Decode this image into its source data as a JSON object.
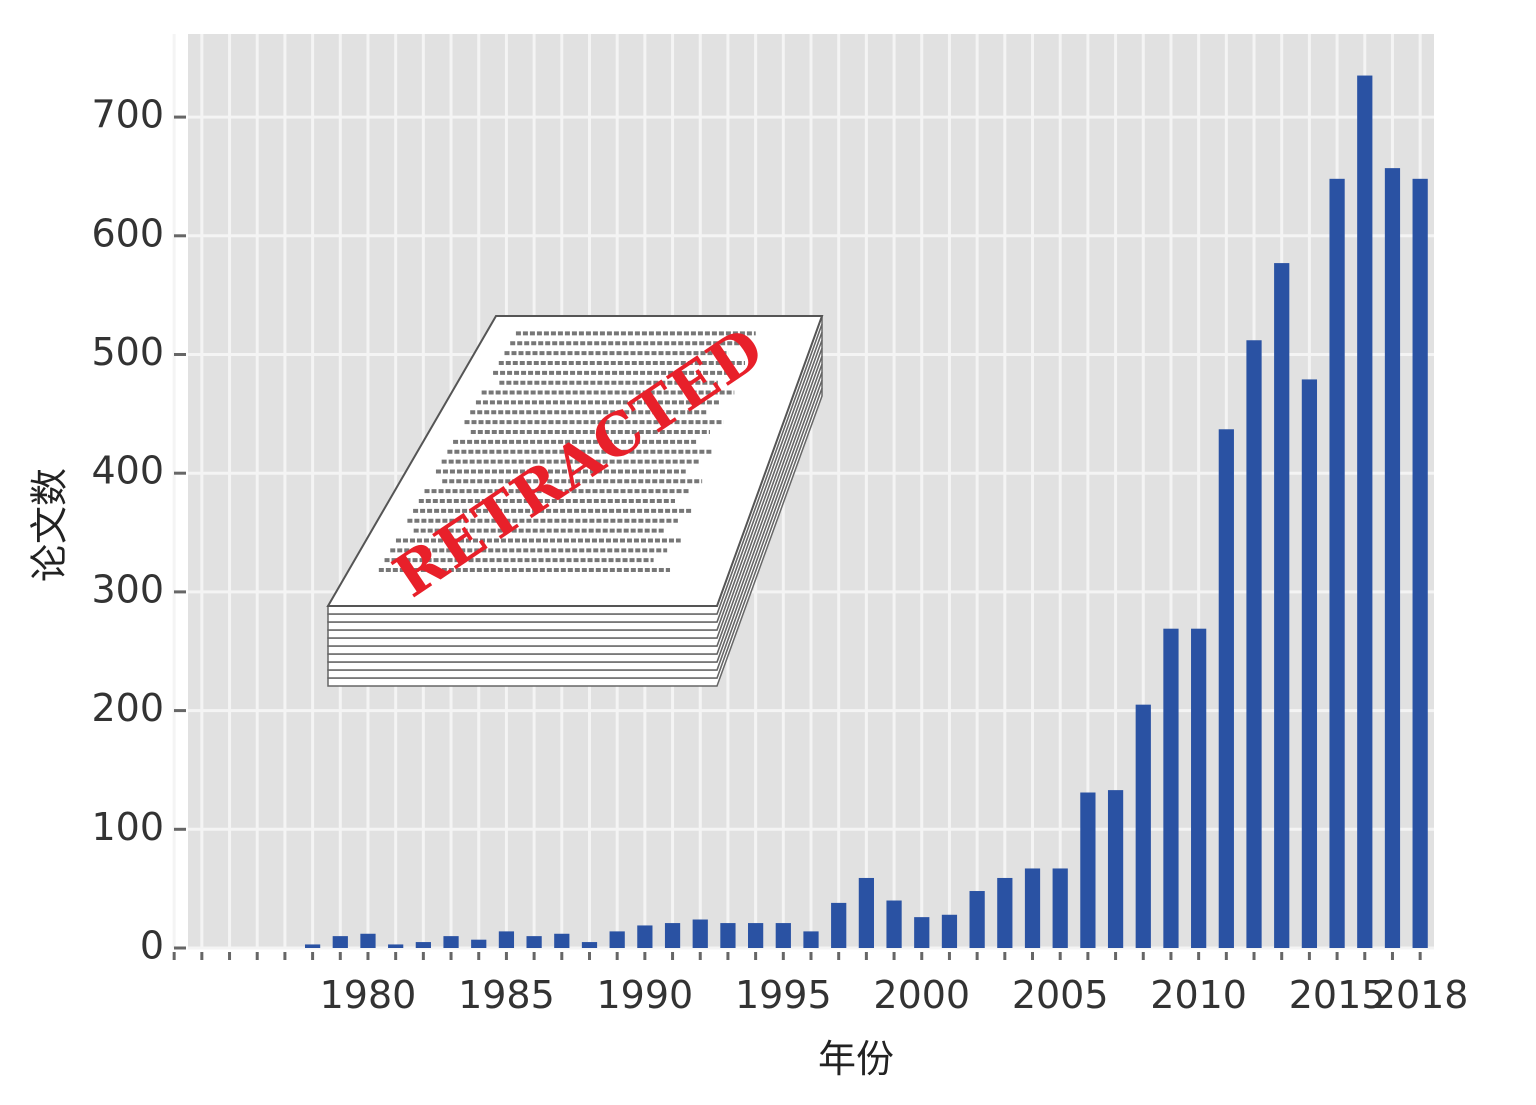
{
  "chart_data": {
    "type": "bar",
    "xlabel": "年份",
    "ylabel": "论文数",
    "ylim": [
      0,
      770
    ],
    "xlim": [
      1973.5,
      2018.5
    ],
    "yticks": [
      0,
      100,
      200,
      300,
      400,
      500,
      600,
      700
    ],
    "xticks": [
      1980,
      1985,
      1990,
      1995,
      2000,
      2005,
      2010,
      2015,
      2018
    ],
    "grid": true,
    "x": [
      1978,
      1979,
      1980,
      1981,
      1982,
      1983,
      1984,
      1985,
      1986,
      1987,
      1988,
      1989,
      1990,
      1991,
      1992,
      1993,
      1994,
      1995,
      1996,
      1997,
      1998,
      1999,
      2000,
      2001,
      2002,
      2003,
      2004,
      2005,
      2006,
      2007,
      2008,
      2009,
      2010,
      2011,
      2012,
      2013,
      2014,
      2015,
      2016,
      2017,
      2018
    ],
    "values": [
      3,
      10,
      12,
      3,
      5,
      10,
      7,
      14,
      10,
      12,
      5,
      14,
      19,
      21,
      24,
      21,
      21,
      21,
      14,
      38,
      59,
      40,
      26,
      28,
      48,
      59,
      67,
      67,
      131,
      133,
      205,
      269,
      269,
      437,
      512,
      577,
      479,
      648,
      735,
      657,
      648
    ],
    "colors": {
      "bar": "#2a52a3",
      "panel": "#e1e1e1",
      "grid": "#f4f4f4"
    }
  },
  "illustration": {
    "stamp": "RETRACTED"
  }
}
